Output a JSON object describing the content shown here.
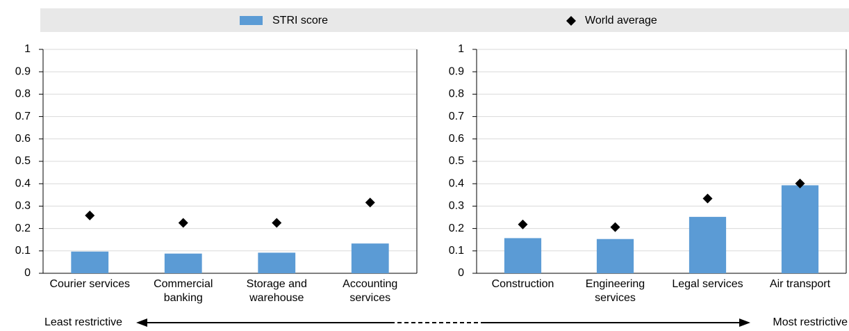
{
  "chart_data": [
    {
      "type": "bar",
      "categories": [
        "Courier services",
        "Commercial banking",
        "Storage and warehouse",
        "Accounting services"
      ],
      "series": [
        {
          "name": "STRI score",
          "type": "bar",
          "color": "#5b9bd5",
          "values": [
            0.097,
            0.088,
            0.092,
            0.133
          ]
        },
        {
          "name": "World average",
          "type": "scatter",
          "marker": "diamond",
          "color": "#000000",
          "values": [
            0.258,
            0.225,
            0.225,
            0.316
          ]
        }
      ],
      "ylim": [
        0,
        1
      ],
      "yticks": [
        0,
        0.1,
        0.2,
        0.3,
        0.4,
        0.5,
        0.6,
        0.7,
        0.8,
        0.9,
        1
      ],
      "grid": true,
      "legend": "top"
    },
    {
      "type": "bar",
      "categories": [
        "Construction",
        "Engineering services",
        "Legal services",
        "Air transport"
      ],
      "series": [
        {
          "type": "bar",
          "color": "#5b9bd5",
          "values": [
            0.157,
            0.153,
            0.252,
            0.393
          ]
        },
        {
          "type": "scatter",
          "marker": "diamond",
          "color": "#000000",
          "values": [
            0.218,
            0.206,
            0.334,
            0.401
          ]
        }
      ],
      "ylim": [
        0,
        1
      ],
      "yticks": [
        0,
        0.1,
        0.2,
        0.3,
        0.4,
        0.5,
        0.6,
        0.7,
        0.8,
        0.9,
        1
      ],
      "grid": true
    }
  ],
  "footer": {
    "left": "Least restrictive",
    "right": "Most restrictive"
  }
}
